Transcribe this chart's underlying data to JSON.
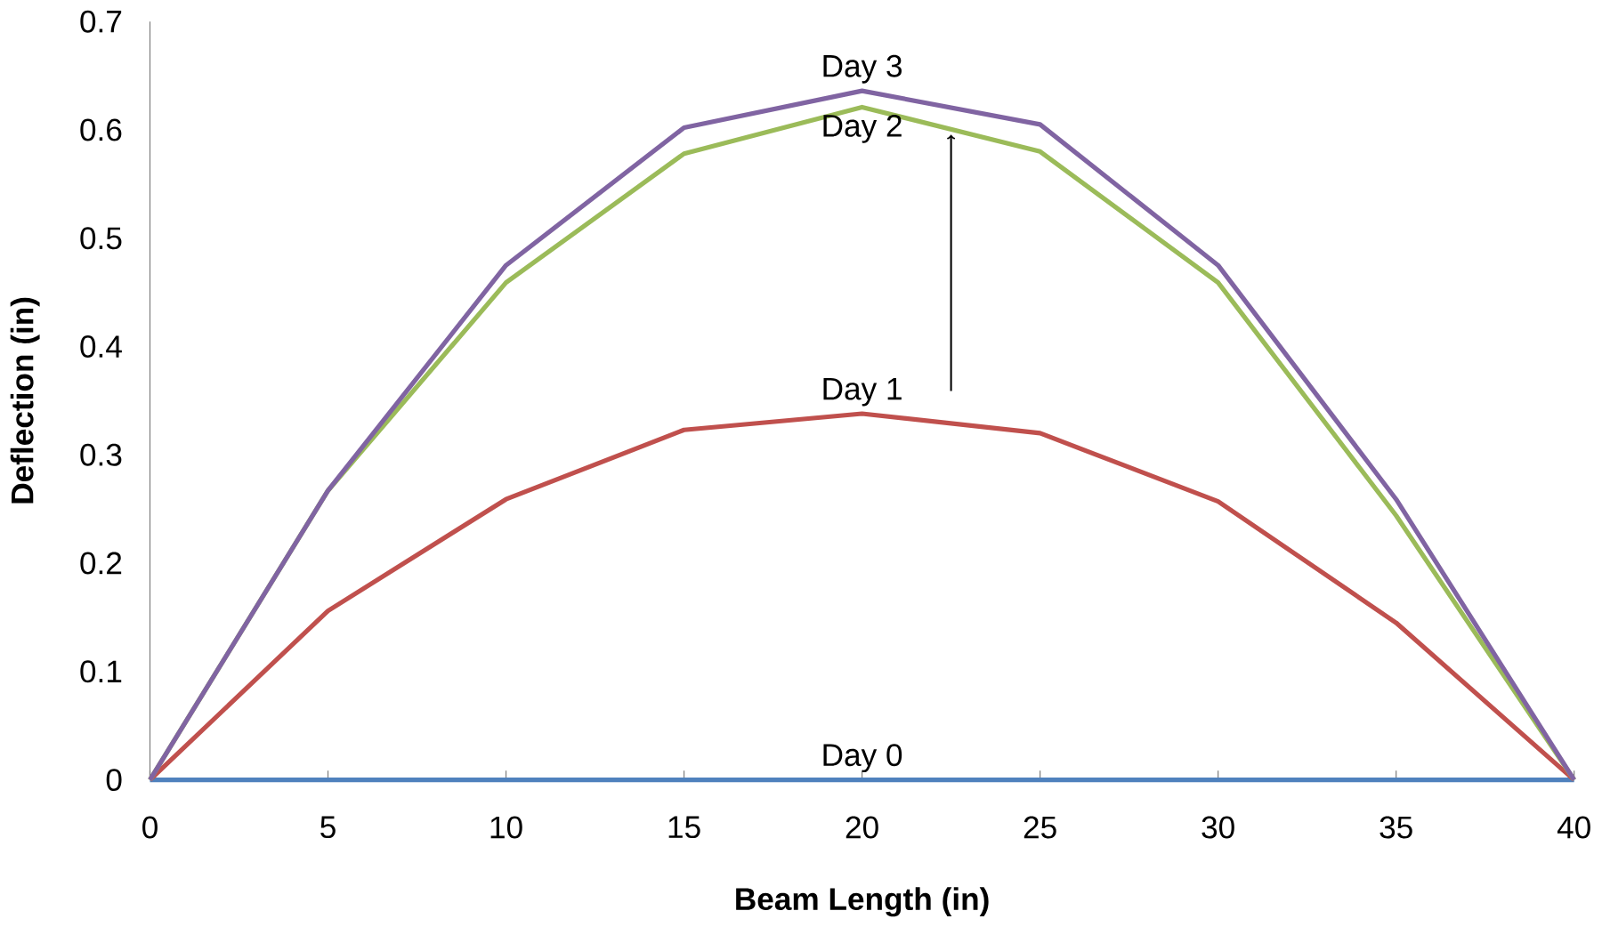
{
  "chart_data": {
    "type": "line",
    "xlabel": "Beam Length (in)",
    "ylabel": "Deflection (in)",
    "x": [
      0,
      5,
      10,
      15,
      20,
      25,
      30,
      35,
      40
    ],
    "xlim": [
      0,
      40
    ],
    "xticks": [
      0,
      5,
      10,
      15,
      20,
      25,
      30,
      35,
      40
    ],
    "ylim": [
      0,
      0.7
    ],
    "yticks": [
      0,
      0.1,
      0.2,
      0.3,
      0.4,
      0.5,
      0.6,
      0.7
    ],
    "grid": false,
    "legend": false,
    "marker": "none",
    "line_style": "solid",
    "series": [
      {
        "name": "Day 0",
        "color": "#4f81bd",
        "values": [
          0,
          0,
          0,
          0,
          0,
          0,
          0,
          0,
          0
        ]
      },
      {
        "name": "Day 1",
        "color": "#c0504d",
        "values": [
          0,
          0.156,
          0.259,
          0.323,
          0.338,
          0.32,
          0.257,
          0.145,
          0
        ]
      },
      {
        "name": "Day 2",
        "color": "#9bbb59",
        "values": [
          0,
          0.267,
          0.459,
          0.578,
          0.621,
          0.58,
          0.459,
          0.244,
          0
        ]
      },
      {
        "name": "Day 3",
        "color": "#8064a2",
        "values": [
          0,
          0.267,
          0.475,
          0.602,
          0.636,
          0.605,
          0.475,
          0.259,
          0
        ]
      }
    ]
  }
}
